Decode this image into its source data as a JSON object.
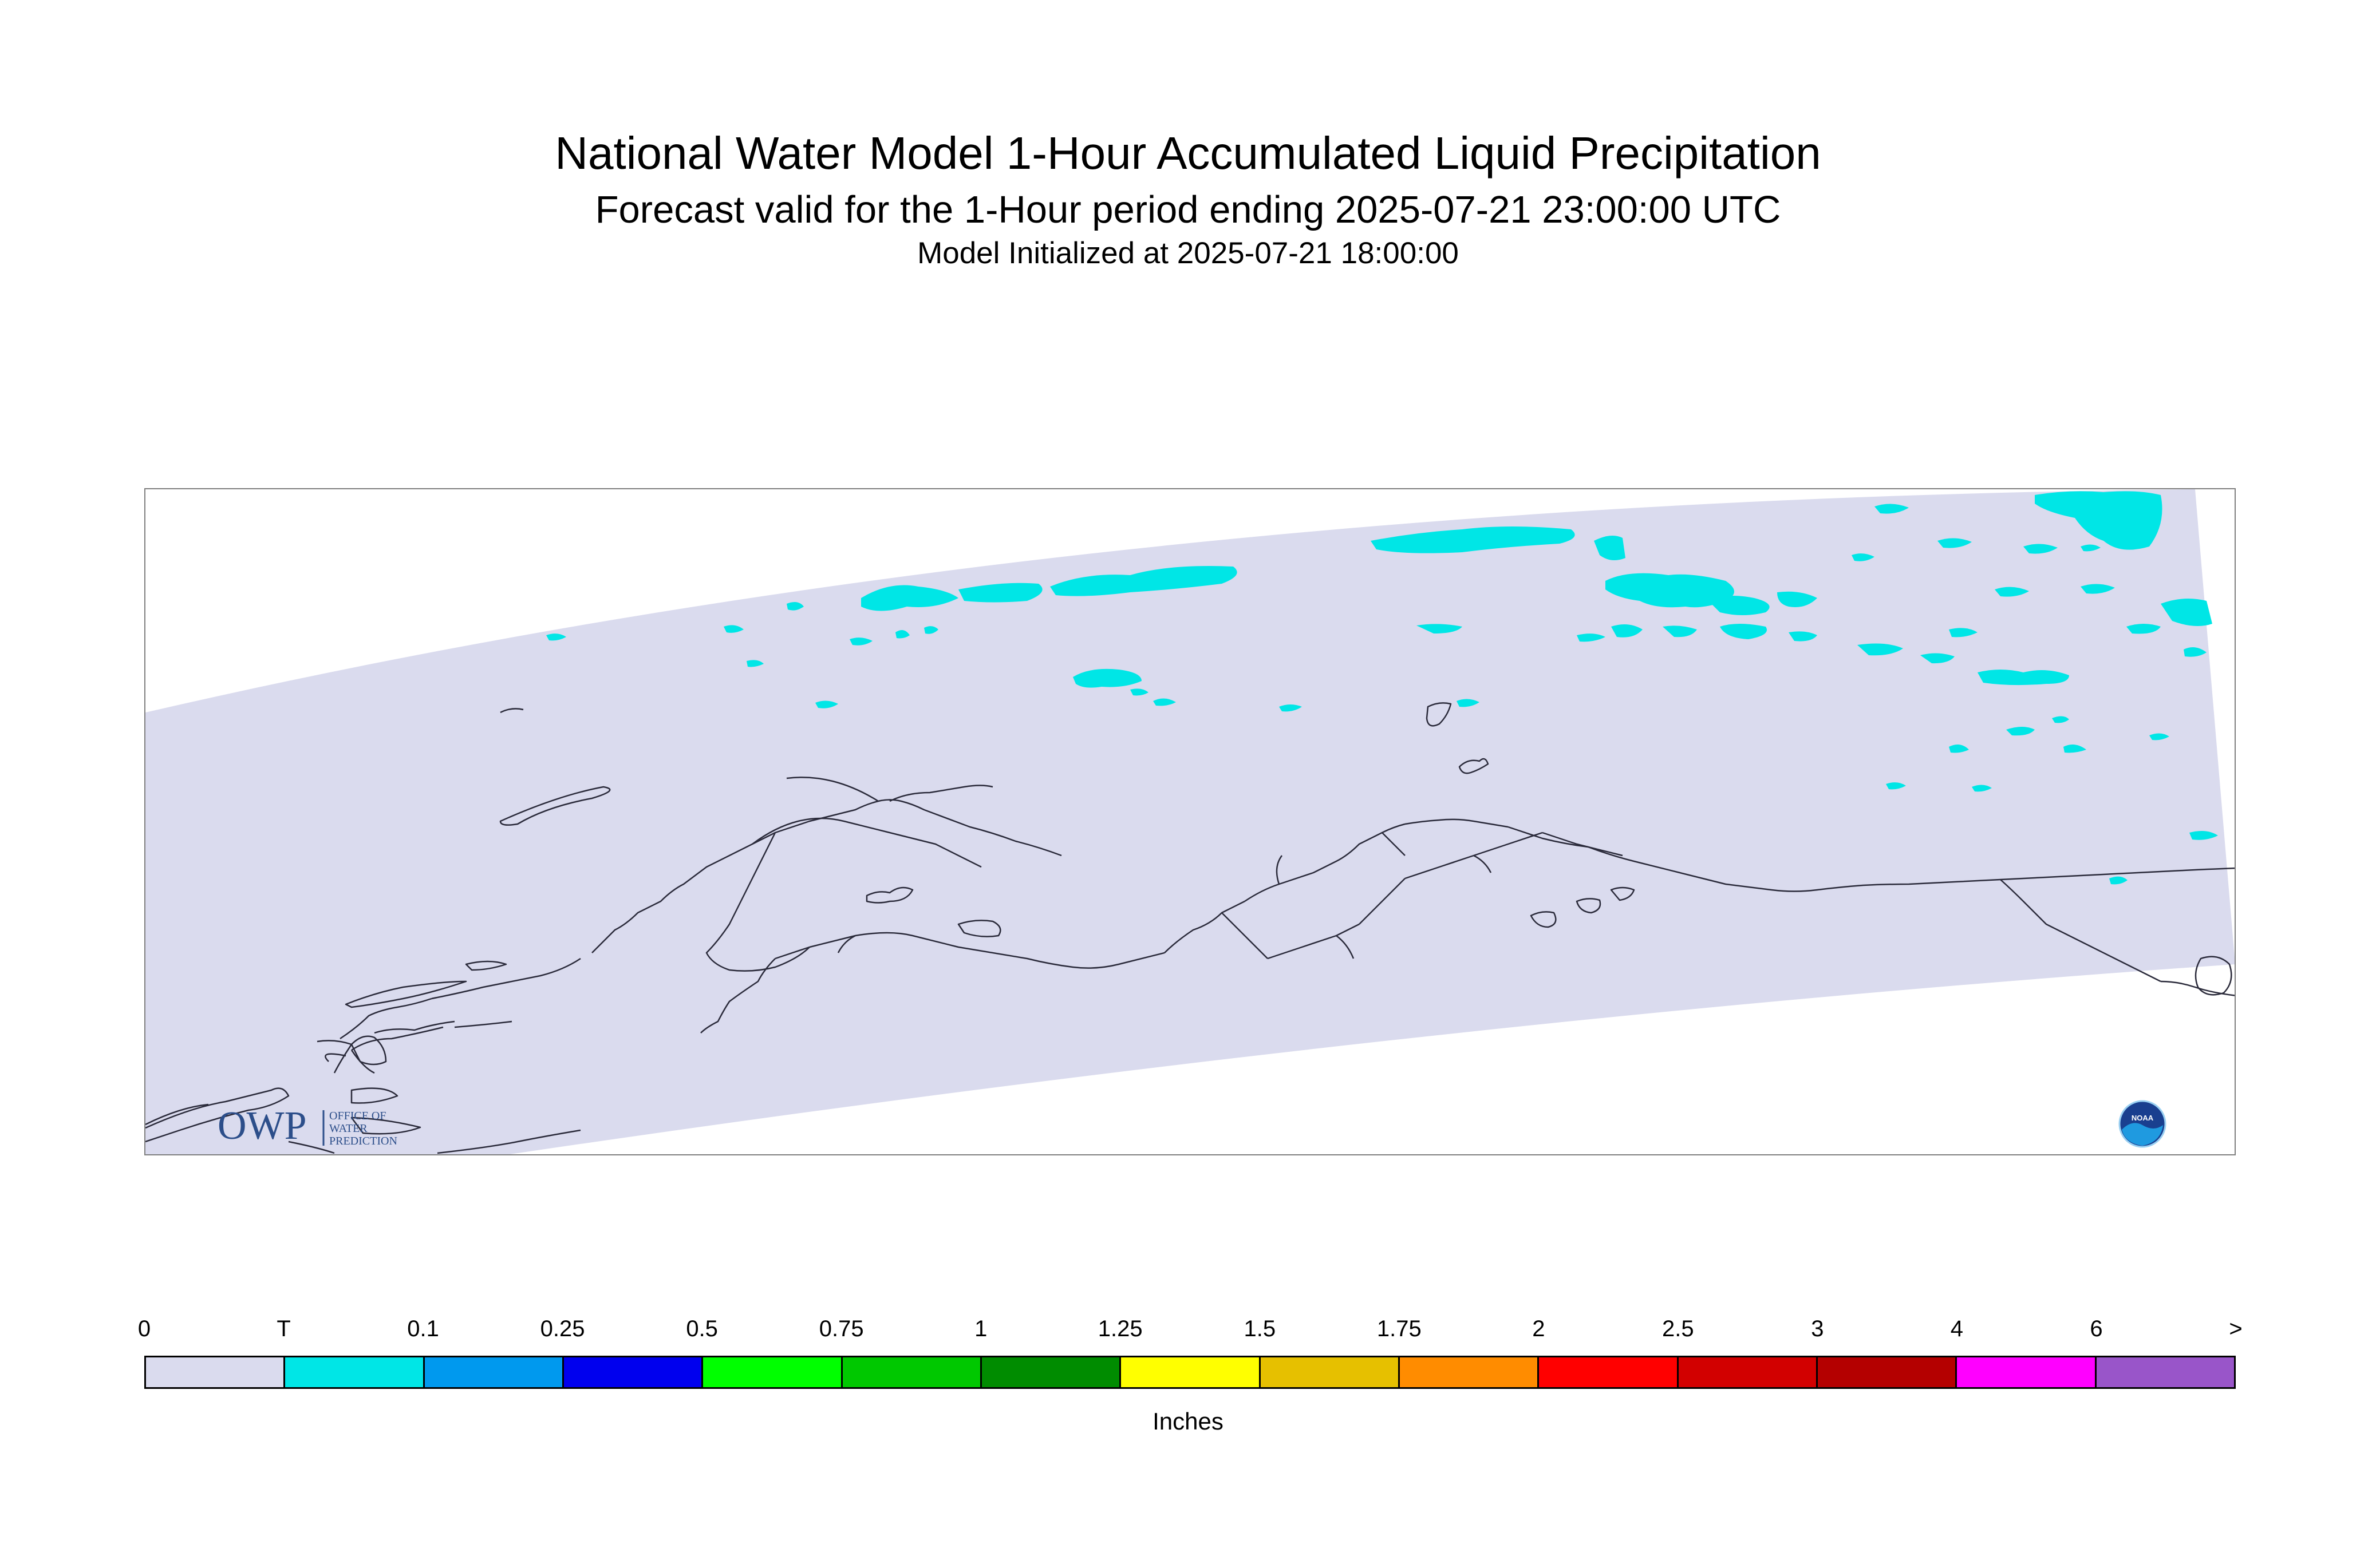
{
  "title": "National Water Model 1-Hour Accumulated Liquid Precipitation",
  "subtitle": "Forecast valid for the 1-Hour period ending 2025-07-21 23:00:00 UTC",
  "init_line": "Model Initialized at 2025-07-21 18:00:00",
  "logos": {
    "owp_mark": "OWP",
    "owp_text": [
      "OFFICE OF",
      "WATER",
      "PREDICTION"
    ],
    "noaa_text": "NOAA"
  },
  "legend": {
    "unit": "Inches",
    "tick_labels": [
      "0",
      "T",
      "0.1",
      "0.25",
      "0.5",
      "0.75",
      "1",
      "1.25",
      "1.5",
      "1.75",
      "2",
      "2.5",
      "3",
      "4",
      "6",
      ">"
    ],
    "colors": [
      "#dadbee",
      "#00e6e6",
      "#0099ee",
      "#0000ee",
      "#00ff00",
      "#00c800",
      "#008c00",
      "#ffff00",
      "#e6c000",
      "#ff8c00",
      "#ff0000",
      "#d20000",
      "#b40000",
      "#ff00ff",
      "#9955c9"
    ]
  },
  "map": {
    "domain_fill": "#dadbee",
    "precip_color": "#00e6e6",
    "coastline_color": "#2a2a3a"
  }
}
